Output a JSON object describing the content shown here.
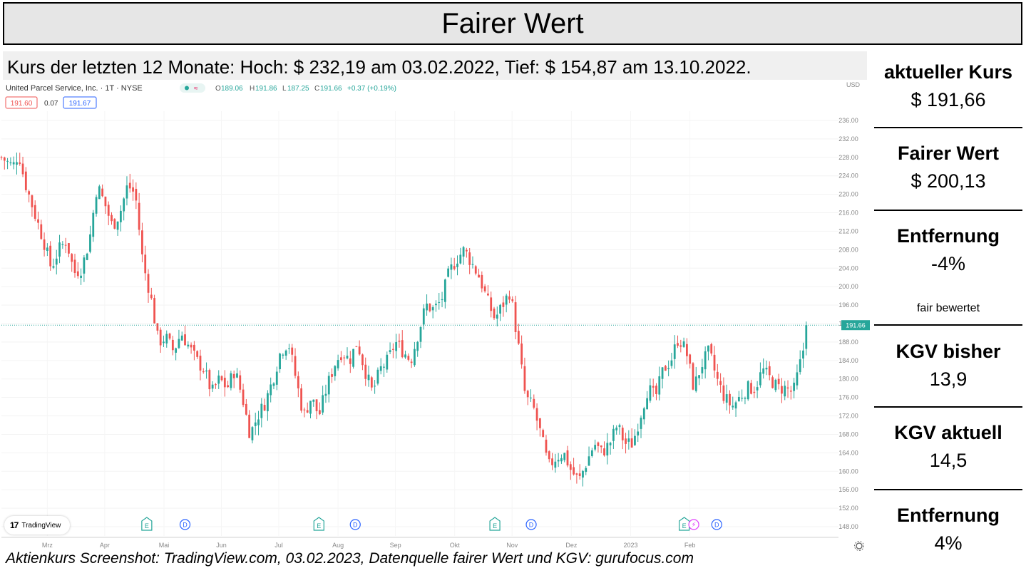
{
  "header": {
    "title": "Fairer Wert",
    "range_text": "Kurs der letzten 12 Monate: Hoch: $ 232,19 am 03.02.2022, Tief: $ 154,87 am 13.10.2022."
  },
  "chart_header": {
    "symbol": "United Parcel Service, Inc. · 1T · NYSE",
    "ohlc_o_label": "O",
    "ohlc_o": "189.06",
    "ohlc_h_label": "H",
    "ohlc_h": "191.86",
    "ohlc_l_label": "L",
    "ohlc_l": "187.25",
    "ohlc_c_label": "C",
    "ohlc_c": "191.66",
    "change": "+0.37 (+0.19%)",
    "bid": "191.60",
    "spread": "0.07",
    "ask": "191.67",
    "currency": "USD",
    "logo_text": "TradingView"
  },
  "chart_data": {
    "type": "candlestick",
    "symbol": "UPS",
    "exchange": "NYSE",
    "currency": "USD",
    "ylim": [
      146,
      238
    ],
    "y_ticks": [
      148,
      152,
      156,
      160,
      164,
      168,
      172,
      176,
      180,
      184,
      188,
      192,
      196,
      200,
      204,
      208,
      212,
      216,
      220,
      224,
      228,
      232,
      236
    ],
    "last_price": 191.66,
    "last_price_label": "191.66",
    "x_months": [
      "Mrz",
      "Apr",
      "Mai",
      "Jun",
      "Jul",
      "Aug",
      "Sep",
      "Okt",
      "Nov",
      "Dez",
      "2023",
      "Feb"
    ],
    "month_days": [
      24,
      54,
      85,
      115,
      145,
      176,
      206,
      237,
      267,
      298,
      329,
      360
    ],
    "total_days": 380,
    "anchors": [
      [
        0,
        228
      ],
      [
        6,
        226
      ],
      [
        9,
        229
      ],
      [
        12,
        223
      ],
      [
        18,
        215
      ],
      [
        22,
        210
      ],
      [
        26,
        204
      ],
      [
        30,
        208
      ],
      [
        34,
        210
      ],
      [
        38,
        203
      ],
      [
        42,
        204
      ],
      [
        46,
        210
      ],
      [
        50,
        222
      ],
      [
        54,
        218
      ],
      [
        58,
        213
      ],
      [
        62,
        216
      ],
      [
        66,
        222
      ],
      [
        70,
        220
      ],
      [
        74,
        205
      ],
      [
        78,
        198
      ],
      [
        82,
        188
      ],
      [
        86,
        189
      ],
      [
        90,
        186
      ],
      [
        94,
        190
      ],
      [
        98,
        187
      ],
      [
        102,
        184
      ],
      [
        106,
        182
      ],
      [
        110,
        177
      ],
      [
        114,
        180
      ],
      [
        118,
        178
      ],
      [
        122,
        182
      ],
      [
        126,
        176
      ],
      [
        130,
        168
      ],
      [
        134,
        172
      ],
      [
        138,
        175
      ],
      [
        142,
        180
      ],
      [
        146,
        186
      ],
      [
        150,
        188
      ],
      [
        154,
        180
      ],
      [
        158,
        172
      ],
      [
        162,
        176
      ],
      [
        166,
        172
      ],
      [
        170,
        178
      ],
      [
        174,
        183
      ],
      [
        178,
        186
      ],
      [
        182,
        184
      ],
      [
        186,
        188
      ],
      [
        190,
        182
      ],
      [
        194,
        177
      ],
      [
        198,
        182
      ],
      [
        202,
        184
      ],
      [
        206,
        188
      ],
      [
        210,
        186
      ],
      [
        214,
        184
      ],
      [
        218,
        190
      ],
      [
        222,
        196
      ],
      [
        226,
        195
      ],
      [
        230,
        197
      ],
      [
        234,
        203
      ],
      [
        238,
        206
      ],
      [
        242,
        208
      ],
      [
        246,
        205
      ],
      [
        250,
        202
      ],
      [
        254,
        197
      ],
      [
        258,
        193
      ],
      [
        262,
        196
      ],
      [
        266,
        199
      ],
      [
        270,
        188
      ],
      [
        274,
        176
      ],
      [
        278,
        174
      ],
      [
        282,
        168
      ],
      [
        286,
        161
      ],
      [
        290,
        163
      ],
      [
        294,
        164
      ],
      [
        298,
        160
      ],
      [
        302,
        158
      ],
      [
        306,
        162
      ],
      [
        310,
        166
      ],
      [
        314,
        164
      ],
      [
        318,
        166
      ],
      [
        322,
        170
      ],
      [
        326,
        166
      ],
      [
        330,
        166
      ],
      [
        334,
        172
      ],
      [
        338,
        178
      ],
      [
        342,
        176
      ],
      [
        346,
        182
      ],
      [
        350,
        184
      ],
      [
        354,
        189
      ],
      [
        358,
        186
      ],
      [
        362,
        178
      ],
      [
        366,
        183
      ],
      [
        370,
        186
      ],
      [
        374,
        180
      ],
      [
        378,
        176
      ],
      [
        382,
        174
      ],
      [
        386,
        176
      ],
      [
        390,
        178
      ],
      [
        394,
        178
      ],
      [
        398,
        182
      ],
      [
        402,
        180
      ],
      [
        406,
        178
      ],
      [
        410,
        178
      ],
      [
        414,
        177
      ],
      [
        418,
        184
      ],
      [
        422,
        191.66
      ]
    ],
    "events": [
      {
        "day": 76,
        "type": "E"
      },
      {
        "day": 96,
        "type": "D"
      },
      {
        "day": 166,
        "type": "E"
      },
      {
        "day": 185,
        "type": "D"
      },
      {
        "day": 258,
        "type": "E"
      },
      {
        "day": 277,
        "type": "D"
      },
      {
        "day": 357,
        "type": "E"
      },
      {
        "day": 362,
        "type": "S"
      },
      {
        "day": 374,
        "type": "D"
      }
    ],
    "colors": {
      "up": "#26a69a",
      "down": "#ef5350",
      "price_line": "#26a69a"
    }
  },
  "panel": {
    "current_price_label": "aktueller Kurs",
    "current_price": "$ 191,66",
    "fair_value_label": "Fairer Wert",
    "fair_value": "$ 200,13",
    "distance_label": "Entfernung",
    "distance": "-4%",
    "assessment": "fair bewertet",
    "pe_past_label": "KGV bisher",
    "pe_past": "13,9",
    "pe_current_label": "KGV aktuell",
    "pe_current": "14,5",
    "pe_distance_label": "Entfernung",
    "pe_distance": "4%"
  },
  "footer": {
    "source": "Aktienkurs Screenshot: TradingView.com, 03.02.2023, Datenquelle fairer Wert und KGV: gurufocus.com"
  }
}
